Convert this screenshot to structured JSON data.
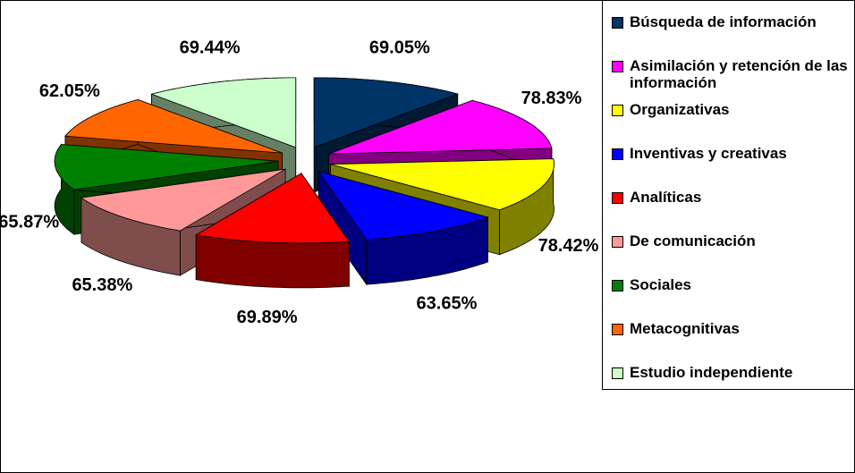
{
  "chart_data": {
    "type": "pie3d",
    "categories": [
      "Búsqueda de información",
      "Asimilación y retención de las información",
      "Organizativas",
      "Inventivas y creativas",
      "Analíticas",
      "De comunicación",
      "Sociales",
      "Metacognitivas",
      "Estudio independiente"
    ],
    "values": [
      69.05,
      78.83,
      78.42,
      63.65,
      69.89,
      65.38,
      65.87,
      62.05,
      69.44
    ],
    "value_labels": [
      "69.05%",
      "78.83%",
      "78.42%",
      "63.65%",
      "69.89%",
      "65.38%",
      "65.87%",
      "62.05%",
      "69.44%"
    ],
    "colors": [
      "#003366",
      "#ff00ff",
      "#ffff00",
      "#0000ff",
      "#ff0000",
      "#ff9999",
      "#008000",
      "#ff6600",
      "#ccffcc"
    ],
    "legend": "right"
  }
}
